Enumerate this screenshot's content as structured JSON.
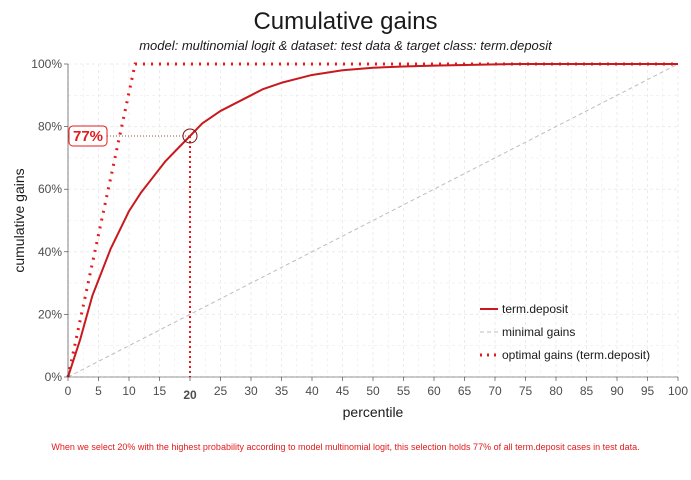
{
  "title": "Cumulative gains",
  "subtitle": "model: multinomial logit  &  dataset: test data  &  target class: term.deposit",
  "caption": "When we select 20% with the highest probability according to model multinomial logit, this selection holds 77% of all term.deposit cases in test data.",
  "colors": {
    "model": "#e41a1c",
    "model_line": "#c8191e",
    "minimal": "#bdbdbd",
    "grid": "#ebebeb"
  },
  "chart_data": {
    "type": "line",
    "xlabel": "percentile",
    "ylabel": "cumulative gains",
    "xlim": [
      0,
      100
    ],
    "ylim": [
      0,
      1
    ],
    "x_ticks": [
      "0",
      "5",
      "10",
      "15",
      "20",
      "25",
      "30",
      "35",
      "40",
      "45",
      "50",
      "55",
      "60",
      "65",
      "70",
      "75",
      "80",
      "85",
      "90",
      "95",
      "100"
    ],
    "y_ticks": [
      "0%",
      "20%",
      "40%",
      "60%",
      "80%",
      "100%"
    ],
    "highlight": {
      "x": 20,
      "y": 0.77,
      "x_label": "20",
      "y_label": "77%"
    },
    "legend_position": "bottom-right",
    "series": [
      {
        "name": "term.deposit",
        "style": "solid",
        "x": [
          0,
          1,
          2,
          3,
          4,
          5,
          6,
          7,
          8,
          9,
          10,
          12,
          14,
          16,
          18,
          20,
          22,
          25,
          28,
          30,
          32,
          35,
          38,
          40,
          45,
          50,
          55,
          60,
          65,
          70,
          75,
          80,
          85,
          90,
          95,
          100
        ],
        "y": [
          0,
          0.06,
          0.12,
          0.19,
          0.26,
          0.31,
          0.36,
          0.41,
          0.45,
          0.49,
          0.53,
          0.59,
          0.64,
          0.69,
          0.73,
          0.77,
          0.81,
          0.85,
          0.88,
          0.9,
          0.92,
          0.94,
          0.955,
          0.965,
          0.98,
          0.988,
          0.992,
          0.995,
          0.997,
          0.999,
          1.0,
          1.0,
          1.0,
          1.0,
          1.0,
          1.0
        ]
      },
      {
        "name": "minimal gains",
        "style": "dashed",
        "x": [
          0,
          100
        ],
        "y": [
          0,
          1
        ]
      },
      {
        "name": "optimal gains (term.deposit)",
        "style": "dotted",
        "x": [
          0,
          11,
          100
        ],
        "y": [
          0,
          1,
          1
        ]
      }
    ]
  }
}
